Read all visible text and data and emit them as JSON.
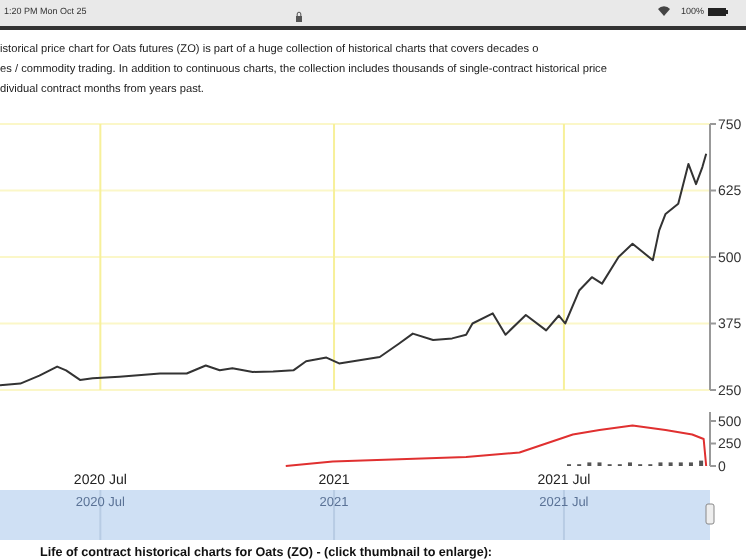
{
  "chart_data": [
    {
      "type": "line",
      "annotations": [
        "1:20 PM  Mon Oct 25",
        "100%",
        "istorical price chart for Oats futures (ZO) is part of a huge collection of historical charts that covers decades o",
        "es / commodity trading. In addition to continuous charts, the collection includes thousands of single-contract historical price",
        "dividual contract months from years past."
      ],
      "x": [
        "2020-04-13",
        "2020-04-29",
        "2020-05-14",
        "2020-05-28",
        "2020-06-04",
        "2020-06-15",
        "2020-06-25",
        "2020-07-16",
        "2020-08-17",
        "2020-09-07",
        "2020-09-22",
        "2020-10-03",
        "2020-10-13",
        "2020-10-29",
        "2020-11-14",
        "2020-11-30",
        "2020-12-10",
        "2020-12-26",
        "2021-01-05",
        "2021-01-21",
        "2021-02-06",
        "2021-02-21",
        "2021-03-04",
        "2021-03-20",
        "2021-04-04",
        "2021-04-15",
        "2021-04-20",
        "2021-05-06",
        "2021-05-16",
        "2021-06-01",
        "2021-06-17",
        "2021-06-27",
        "2021-07-02",
        "2021-07-13",
        "2021-07-23",
        "2021-07-31",
        "2021-08-13",
        "2021-08-24",
        "2021-09-09",
        "2021-09-14",
        "2021-09-19",
        "2021-09-29",
        "2021-10-07",
        "2021-10-13",
        "2021-10-18",
        "2021-10-21"
      ],
      "series": [
        {
          "color": "#333333",
          "values": [
            259,
            262,
            277,
            294,
            287,
            269,
            272,
            275,
            281,
            281,
            296,
            287,
            291,
            284,
            285,
            287,
            304,
            311,
            300,
            306,
            312,
            337,
            356,
            344,
            347,
            354,
            375,
            394,
            354,
            391,
            362,
            390,
            375,
            437,
            462,
            450,
            500,
            525,
            494,
            550,
            581,
            600,
            675,
            637,
            669,
            694
          ]
        }
      ],
      "xlim": [
        "2020-04-13",
        "2021-10-24"
      ],
      "ylim": [
        250,
        750
      ],
      "yticks": [
        250,
        375,
        500,
        625,
        750
      ],
      "xticks": [
        {
          "value": "2020-07-01",
          "label": null
        },
        {
          "value": "2021-01-01",
          "label": null
        },
        {
          "value": "2021-07-01",
          "label": null
        }
      ],
      "grid": true,
      "tick_labels": "y"
    },
    {
      "type": "line",
      "xlim": [
        "2020-04-13",
        "2021-10-24"
      ],
      "ylim": [
        0,
        600
      ],
      "yticks": [
        0,
        250,
        500
      ],
      "xticks": [
        {
          "value": "2020-07-01",
          "label": "2020 Jul"
        },
        {
          "value": "2021-01-01",
          "label": "2021"
        },
        {
          "value": "2021-07-01",
          "label": "2021 Jul"
        }
      ],
      "series": [
        {
          "type": "bar",
          "color": "#555555",
          "x": [
            "2021-07-05",
            "2021-07-13",
            "2021-07-21",
            "2021-07-29",
            "2021-08-06",
            "2021-08-14",
            "2021-08-22",
            "2021-08-30",
            "2021-09-07",
            "2021-09-15",
            "2021-09-23",
            "2021-10-01",
            "2021-10-09",
            "2021-10-17"
          ],
          "values": [
            20,
            20,
            40,
            40,
            20,
            20,
            40,
            20,
            20,
            40,
            40,
            40,
            40,
            60
          ]
        },
        {
          "type": "line",
          "color": "#e03030",
          "x": [
            "2020-11-24",
            "2020-12-31",
            "2021-04-15",
            "2021-05-27",
            "2021-06-17",
            "2021-07-08",
            "2021-07-29",
            "2021-08-24",
            "2021-09-19",
            "2021-10-10",
            "2021-10-19",
            "2021-10-21"
          ],
          "values": [
            0,
            50,
            100,
            150,
            250,
            350,
            400,
            450,
            400,
            350,
            300,
            0
          ]
        }
      ],
      "grid": false
    },
    {
      "type": "other",
      "annotations": [
        "2020 Jul",
        "2021",
        "2021 Jul",
        "Life of contract historical charts for Oats (ZO) - (click thumbnail to enlarge):"
      ]
    }
  ]
}
